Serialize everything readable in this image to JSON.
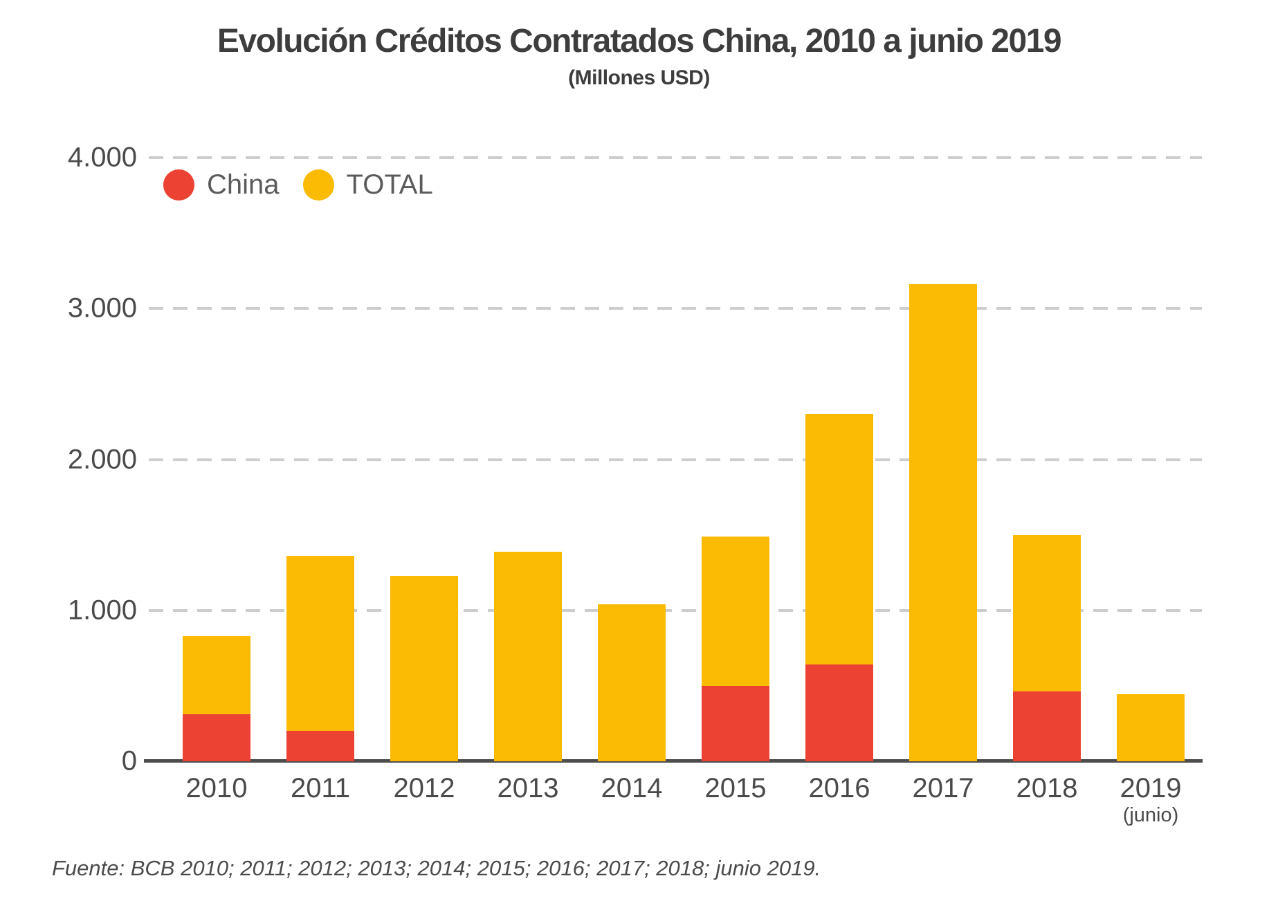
{
  "title": "Evolución Créditos Contratados China, 2010 a junio 2019",
  "subtitle": "(Millones USD)",
  "source": "Fuente: BCB 2010; 2011; 2012; 2013; 2014; 2015; 2016; 2017; 2018; junio 2019.",
  "legend": [
    {
      "label": "China",
      "color": "#EC4234"
    },
    {
      "label": "TOTAL",
      "color": "#FBBB05"
    }
  ],
  "colors": {
    "china": "#EC4234",
    "total": "#FBBB05",
    "axis_line": "#4d4d4d",
    "gridline": "#cdcdcd",
    "text": "#4a4a4a",
    "title_text": "#3d3d3d"
  },
  "chart_data": {
    "type": "bar",
    "overlay": "China bar drawn over bottom of TOTAL bar (not additive stacking)",
    "title": "Evolución Créditos Contratados China, 2010 a junio 2019",
    "subtitle": "(Millones USD)",
    "categories": [
      "2010",
      "2011",
      "2012",
      "2013",
      "2014",
      "2015",
      "2016",
      "2017",
      "2018",
      "2019"
    ],
    "sublabels": [
      "",
      "",
      "",
      "",
      "",
      "",
      "",
      "",
      "",
      "(junio)"
    ],
    "series": [
      {
        "name": "China",
        "color": "#EC4234",
        "values": [
          310,
          200,
          0,
          0,
          0,
          500,
          640,
          0,
          465,
          0
        ]
      },
      {
        "name": "TOTAL",
        "color": "#FBBB05",
        "values": [
          830,
          1360,
          1230,
          1390,
          1040,
          1490,
          2300,
          3160,
          1500,
          445
        ]
      }
    ],
    "xlabel": "",
    "ylabel": "",
    "ylim": [
      0,
      4000
    ],
    "yticks": [
      0,
      1000,
      2000,
      3000,
      4000
    ],
    "ytick_labels": [
      "0",
      "1.000",
      "2.000",
      "3.000",
      "4.000"
    ],
    "grid": "horizontal dashed",
    "legend_position": "top-left"
  }
}
